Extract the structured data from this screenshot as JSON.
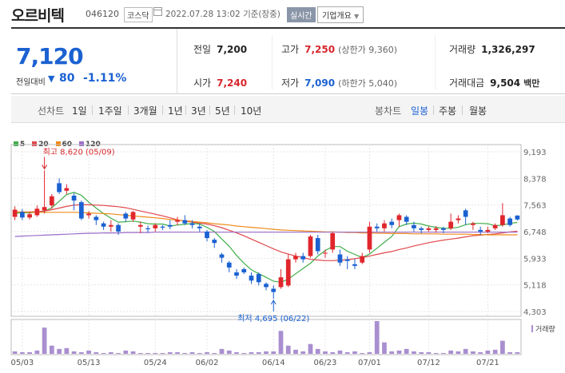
{
  "header": {
    "stock_name": "오르비텍",
    "stock_code": "046120",
    "market": "코스닥",
    "datetime": "2022.07.28 13:02",
    "basis": "기준(장중)",
    "realtime_badge": "실시간",
    "overview_button": "기업개요"
  },
  "quote": {
    "price": "7,120",
    "change_label": "전일대비",
    "change_value": "80",
    "change_pct": "-1.11%",
    "prev_close_label": "전일",
    "prev_close": "7,200",
    "high_label": "고가",
    "high": "7,250",
    "upper_limit": "(상한가 9,360)",
    "volume_label": "거래량",
    "volume": "1,326,297",
    "open_label": "시가",
    "open": "7,240",
    "low_label": "저가",
    "low": "7,090",
    "lower_limit": "(하한가 5,040)",
    "amount_label": "거래대금",
    "amount": "9,504",
    "amount_unit": "백만"
  },
  "range_bar": {
    "line_chart_label": "선차트",
    "line_periods": [
      "1일",
      "1주일",
      "3개월",
      "1년",
      "3년",
      "5년",
      "10년"
    ],
    "candle_chart_label": "봉차트",
    "candle_periods": [
      "일봉",
      "주봉",
      "월봉"
    ],
    "candle_selected": "일봉"
  },
  "chart_data": {
    "type": "candlestick",
    "y_ticks": [
      "9,193",
      "8,378",
      "7,563",
      "6,748",
      "5,933",
      "5,118",
      "4,303"
    ],
    "x_ticks": [
      "05/03",
      "05/13",
      "05/24",
      "06/02",
      "06/14",
      "06/23",
      "07/01",
      "07/12",
      "07/21"
    ],
    "ylim": [
      4303,
      9193
    ],
    "legend": [
      {
        "name": "5",
        "color": "#3fae49"
      },
      {
        "name": "20",
        "color": "#e0474c"
      },
      {
        "name": "60",
        "color": "#f08c1c"
      },
      {
        "name": "120",
        "color": "#9b6cc9"
      }
    ],
    "annotations": {
      "high": "최고 8,620 (05/09)",
      "low": "최저 4,695 (06/22)"
    },
    "volume_label": "거래량",
    "colors": {
      "up": "#e0262c",
      "down": "#1b61d1",
      "volume": "#a98fd0",
      "grid": "#e6e6e6",
      "axis": "#999999"
    },
    "candles": [
      {
        "o": 7200,
        "c": 7420,
        "h": 7520,
        "l": 7100
      },
      {
        "o": 7350,
        "c": 7180,
        "h": 7440,
        "l": 7100
      },
      {
        "o": 7180,
        "c": 7280,
        "h": 7350,
        "l": 7120
      },
      {
        "o": 7250,
        "c": 7450,
        "h": 7550,
        "l": 7200
      },
      {
        "o": 7400,
        "c": 7500,
        "h": 8620,
        "l": 7300
      },
      {
        "o": 7550,
        "c": 7830,
        "h": 7900,
        "l": 7450
      },
      {
        "o": 8230,
        "c": 7960,
        "h": 8380,
        "l": 7900
      },
      {
        "o": 8000,
        "c": 8080,
        "h": 8200,
        "l": 7900
      },
      {
        "o": 7850,
        "c": 7700,
        "h": 7930,
        "l": 7400
      },
      {
        "o": 7650,
        "c": 7150,
        "h": 7700,
        "l": 7100
      },
      {
        "o": 7250,
        "c": 7300,
        "h": 7380,
        "l": 7150
      },
      {
        "o": 7200,
        "c": 7100,
        "h": 7250,
        "l": 6950
      },
      {
        "o": 7000,
        "c": 6900,
        "h": 7050,
        "l": 6800
      },
      {
        "o": 6900,
        "c": 6950,
        "h": 7100,
        "l": 6750
      },
      {
        "o": 6950,
        "c": 6750,
        "h": 7000,
        "l": 6650
      },
      {
        "o": 7300,
        "c": 7150,
        "h": 7350,
        "l": 7050
      },
      {
        "o": 7120,
        "c": 7350,
        "h": 7380,
        "l": 7050
      },
      {
        "o": 6900,
        "c": 6950,
        "h": 7050,
        "l": 6700
      },
      {
        "o": 6850,
        "c": 6820,
        "h": 6930,
        "l": 6720
      },
      {
        "o": 6850,
        "c": 6950,
        "h": 7000,
        "l": 6750
      },
      {
        "o": 6900,
        "c": 6870,
        "h": 6950,
        "l": 6800
      },
      {
        "o": 6950,
        "c": 6900,
        "h": 7100,
        "l": 6820
      },
      {
        "o": 7050,
        "c": 7100,
        "h": 7200,
        "l": 6950
      },
      {
        "o": 7100,
        "c": 7000,
        "h": 7250,
        "l": 6950
      },
      {
        "o": 7000,
        "c": 6950,
        "h": 7100,
        "l": 6850
      },
      {
        "o": 6900,
        "c": 6850,
        "h": 7000,
        "l": 6750
      },
      {
        "o": 6750,
        "c": 6550,
        "h": 6800,
        "l": 6450
      },
      {
        "o": 6500,
        "c": 6400,
        "h": 6550,
        "l": 6250
      },
      {
        "o": 6050,
        "c": 5950,
        "h": 6100,
        "l": 5800
      },
      {
        "o": 5800,
        "c": 5650,
        "h": 5850,
        "l": 5500
      },
      {
        "o": 5500,
        "c": 5400,
        "h": 5600,
        "l": 5300
      },
      {
        "o": 5600,
        "c": 5500,
        "h": 5650,
        "l": 5450
      },
      {
        "o": 5400,
        "c": 5250,
        "h": 5500,
        "l": 5150
      },
      {
        "o": 5450,
        "c": 5200,
        "h": 5500,
        "l": 5100
      },
      {
        "o": 5150,
        "c": 5050,
        "h": 5200,
        "l": 4950
      },
      {
        "o": 5000,
        "c": 4900,
        "h": 5100,
        "l": 4695
      },
      {
        "o": 5050,
        "c": 5350,
        "h": 5600,
        "l": 5000
      },
      {
        "o": 5100,
        "c": 5900,
        "h": 6050,
        "l": 5050
      },
      {
        "o": 5900,
        "c": 6000,
        "h": 6100,
        "l": 5800
      },
      {
        "o": 6000,
        "c": 5900,
        "h": 6100,
        "l": 5800
      },
      {
        "o": 6000,
        "c": 6600,
        "h": 6650,
        "l": 5950
      },
      {
        "o": 6550,
        "c": 6150,
        "h": 6650,
        "l": 6050
      },
      {
        "o": 6100,
        "c": 6100,
        "h": 6200,
        "l": 5950
      },
      {
        "o": 6200,
        "c": 6700,
        "h": 6750,
        "l": 6100
      },
      {
        "o": 6050,
        "c": 5800,
        "h": 6200,
        "l": 5700
      },
      {
        "o": 5900,
        "c": 5850,
        "h": 6000,
        "l": 5600
      },
      {
        "o": 5750,
        "c": 5700,
        "h": 5900,
        "l": 5600
      },
      {
        "o": 5800,
        "c": 6000,
        "h": 6100,
        "l": 5750
      },
      {
        "o": 6200,
        "c": 6900,
        "h": 7050,
        "l": 6100
      },
      {
        "o": 6900,
        "c": 6850,
        "h": 7000,
        "l": 6750
      },
      {
        "o": 6850,
        "c": 7000,
        "h": 7100,
        "l": 6750
      },
      {
        "o": 7050,
        "c": 6950,
        "h": 7150,
        "l": 6850
      },
      {
        "o": 7100,
        "c": 7250,
        "h": 7300,
        "l": 6900
      },
      {
        "o": 7200,
        "c": 7050,
        "h": 7250,
        "l": 6950
      },
      {
        "o": 6950,
        "c": 6850,
        "h": 7050,
        "l": 6750
      },
      {
        "o": 6850,
        "c": 6800,
        "h": 6900,
        "l": 6700
      },
      {
        "o": 6800,
        "c": 6850,
        "h": 6900,
        "l": 6750
      },
      {
        "o": 6800,
        "c": 6850,
        "h": 6920,
        "l": 6720
      },
      {
        "o": 6850,
        "c": 6800,
        "h": 6900,
        "l": 6700
      },
      {
        "o": 6850,
        "c": 7050,
        "h": 7300,
        "l": 6800
      },
      {
        "o": 7100,
        "c": 7150,
        "h": 7250,
        "l": 7000
      },
      {
        "o": 7400,
        "c": 7200,
        "h": 7450,
        "l": 6950
      },
      {
        "o": 6950,
        "c": 7000,
        "h": 7050,
        "l": 6800
      },
      {
        "o": 6800,
        "c": 6750,
        "h": 6900,
        "l": 6650
      },
      {
        "o": 6750,
        "c": 6800,
        "h": 6900,
        "l": 6700
      },
      {
        "o": 6850,
        "c": 6950,
        "h": 7000,
        "l": 6800
      },
      {
        "o": 6950,
        "c": 7250,
        "h": 7620,
        "l": 6900
      },
      {
        "o": 7150,
        "c": 6950,
        "h": 7200,
        "l": 6900
      },
      {
        "o": 7240,
        "c": 7120,
        "h": 7250,
        "l": 7090
      }
    ],
    "ma": {
      "5": [
        7310,
        7330,
        7320,
        7350,
        7370,
        7480,
        7680,
        7880,
        7950,
        7860,
        7650,
        7470,
        7300,
        7160,
        7040,
        7050,
        7070,
        7040,
        6990,
        6980,
        6980,
        6920,
        6950,
        6970,
        7000,
        6980,
        6880,
        6750,
        6520,
        6300,
        6020,
        5780,
        5580,
        5460,
        5350,
        5230,
        5200,
        5290,
        5460,
        5620,
        5780,
        6000,
        6170,
        6290,
        6290,
        6150,
        6050,
        5950,
        6060,
        6240,
        6420,
        6600,
        6900,
        6980,
        7010,
        6980,
        6920,
        6880,
        6850,
        6850,
        6880,
        6960,
        7000,
        7000,
        6990,
        6930,
        6950,
        7000,
        7030
      ],
      "20": [
        7350,
        7350,
        7350,
        7360,
        7380,
        7420,
        7470,
        7520,
        7560,
        7570,
        7570,
        7560,
        7550,
        7530,
        7510,
        7480,
        7430,
        7380,
        7330,
        7280,
        7230,
        7170,
        7110,
        7070,
        7040,
        7010,
        6980,
        6930,
        6870,
        6790,
        6710,
        6620,
        6520,
        6420,
        6320,
        6220,
        6130,
        6060,
        6000,
        5950,
        5900,
        5880,
        5860,
        5860,
        5870,
        5890,
        5920,
        5950,
        6000,
        6050,
        6100,
        6140,
        6200,
        6250,
        6310,
        6360,
        6410,
        6450,
        6490,
        6520,
        6550,
        6590,
        6620,
        6640,
        6660,
        6680,
        6710,
        6740,
        6760
      ],
      "60": [
        7350,
        7350,
        7340,
        7340,
        7340,
        7340,
        7340,
        7340,
        7340,
        7330,
        7320,
        7310,
        7300,
        7290,
        7270,
        7250,
        7230,
        7210,
        7190,
        7170,
        7150,
        7120,
        7100,
        7080,
        7060,
        7040,
        7020,
        6990,
        6970,
        6950,
        6920,
        6900,
        6880,
        6860,
        6840,
        6820,
        6800,
        6790,
        6780,
        6770,
        6760,
        6750,
        6740,
        6740,
        6730,
        6720,
        6720,
        6710,
        6710,
        6700,
        6700,
        6690,
        6690,
        6690,
        6680,
        6680,
        6680,
        6680,
        6670,
        6670,
        6670,
        6670,
        6660,
        6660,
        6650,
        6650,
        6650,
        6650,
        6650
      ],
      "120": [
        6600,
        6610,
        6620,
        6630,
        6640,
        6650,
        6660,
        6670,
        6680,
        6690,
        6700,
        6700,
        6710,
        6710,
        6710,
        6720,
        6720,
        6720,
        6720,
        6730,
        6730,
        6730,
        6730,
        6730,
        6730,
        6730,
        6730,
        6730,
        6730,
        6730,
        6730,
        6730,
        6730,
        6730,
        6730,
        6730,
        6730,
        6730,
        6730,
        6730,
        6730,
        6730,
        6730,
        6730,
        6730,
        6730,
        6730,
        6730,
        6730,
        6730,
        6730,
        6730,
        6730,
        6730,
        6730,
        6730,
        6730,
        6730,
        6730,
        6730,
        6730,
        6730,
        6730,
        6730,
        6730,
        6730,
        6730,
        6730,
        6730
      ]
    },
    "volume": [
      3,
      2,
      2,
      4,
      32,
      10,
      6,
      7,
      3,
      2,
      4,
      2,
      1,
      2,
      1,
      4,
      3,
      1,
      1,
      1,
      1,
      2,
      2,
      1,
      2,
      1,
      2,
      1,
      6,
      4,
      2,
      1,
      2,
      2,
      3,
      3,
      28,
      10,
      5,
      3,
      12,
      6,
      3,
      2,
      4,
      2,
      3,
      1,
      2,
      40,
      14,
      3,
      4,
      6,
      3,
      2,
      2,
      1,
      1,
      4,
      3,
      6,
      3,
      2,
      4,
      5,
      16,
      2,
      2
    ],
    "volume_max": 40
  }
}
